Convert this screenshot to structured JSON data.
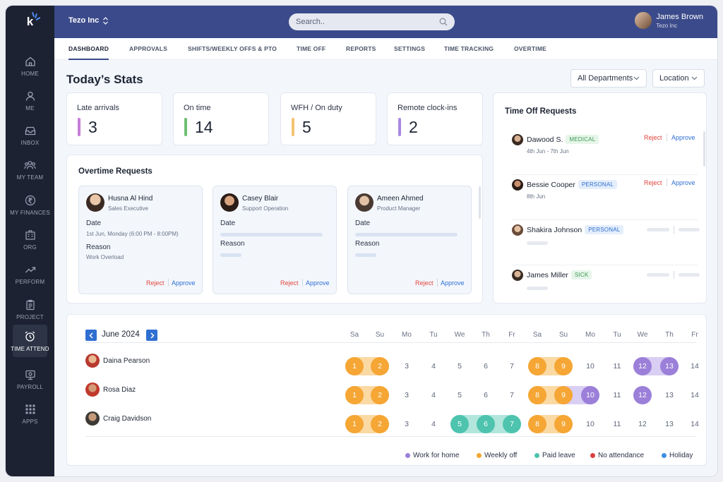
{
  "app": {
    "logo": "k",
    "org": "Tezo Inc",
    "search_placeholder": "Search..",
    "user_name": "James Brown",
    "user_org": "Tezo Inc"
  },
  "sidebar": {
    "items": [
      {
        "label": "HOME",
        "icon": "home-icon"
      },
      {
        "label": "ME",
        "icon": "user-icon"
      },
      {
        "label": "INBOX",
        "icon": "inbox-icon"
      },
      {
        "label": "MY TEAM",
        "icon": "team-icon"
      },
      {
        "label": "MY FINANCES",
        "icon": "rupee-icon"
      },
      {
        "label": "ORG",
        "icon": "org-icon"
      },
      {
        "label": "PERFORM",
        "icon": "trend-icon"
      },
      {
        "label": "PROJECT",
        "icon": "clipboard-icon"
      },
      {
        "label": "TIME ATTEND",
        "icon": "alarm-clock-icon"
      },
      {
        "label": "PAYROLL",
        "icon": "payroll-icon"
      },
      {
        "label": "APPS",
        "icon": "grid-icon"
      }
    ],
    "active": "TIME ATTEND"
  },
  "tabs": [
    "DASHBOARD",
    "APPROVALS",
    "SHIFTS/WEEKLY OFFS & PTO",
    "TIME OFF",
    "REPORTS",
    "SETTINGS",
    "TIME TRACKING",
    "OVERTIME"
  ],
  "page_title": "Today’s Stats",
  "filters": {
    "department": "All Departments",
    "location": "Location"
  },
  "stats": [
    {
      "label": "Late arrivals",
      "value": "3",
      "color": "#c77dd8"
    },
    {
      "label": "On time",
      "value": "14",
      "color": "#6fbf73"
    },
    {
      "label": "WFH / On duty",
      "value": "5",
      "color": "#f4c470"
    },
    {
      "label": "Remote clock-ins",
      "value": "2",
      "color": "#a889e0"
    }
  ],
  "overtime": {
    "title": "Overtime Requests",
    "requests": [
      {
        "name": "Husna Al Hind",
        "role": "Sales Executive",
        "date_label": "Date",
        "date": "1st Jun, Monday (6:00 PM - 8:00PM)",
        "reason_label": "Reason",
        "reason": "Work Overload",
        "reject": "Reject",
        "approve": "Approve"
      },
      {
        "name": "Casey Blair",
        "role": "Support Operation",
        "date_label": "Date",
        "reason_label": "Reason",
        "reject": "Reject",
        "approve": "Approve"
      },
      {
        "name": "Ameen Ahmed",
        "role": "Product Manager",
        "date_label": "Date",
        "reason_label": "Reason",
        "reject": "Reject",
        "approve": "Approve"
      }
    ]
  },
  "time_off": {
    "title": "Time Off Requests",
    "requests": [
      {
        "name": "Dawood S.",
        "tag": "MEDICAL",
        "dates": "4th Jun - 7th Jun",
        "reject": "Reject",
        "approve": "Approve"
      },
      {
        "name": "Bessie Cooper",
        "tag": "PERSONAL",
        "dates": "8th Jun",
        "reject": "Reject",
        "approve": "Approve"
      },
      {
        "name": "Shakira Johnson",
        "tag": "PERSONAL"
      },
      {
        "name": "James Miller",
        "tag": "SICK"
      }
    ]
  },
  "calendar": {
    "month": "June 2024",
    "weekdays": [
      "Sa",
      "Su",
      "Mo",
      "Tu",
      "We",
      "Th",
      "Fr",
      "Sa",
      "Su",
      "Mo",
      "Tu",
      "We",
      "Th",
      "Fr"
    ],
    "people": [
      {
        "name": "Daina Pearson",
        "days": [
          "1",
          "2",
          "3",
          "4",
          "5",
          "6",
          "7",
          "8",
          "9",
          "10",
          "11",
          "12",
          "13",
          "14"
        ]
      },
      {
        "name": "Rosa Diaz",
        "days": [
          "1",
          "2",
          "3",
          "4",
          "5",
          "6",
          "7",
          "8",
          "9",
          "10",
          "11",
          "12",
          "13",
          "14"
        ]
      },
      {
        "name": "Craig Davidson",
        "days": [
          "1",
          "2",
          "3",
          "4",
          "5",
          "6",
          "7",
          "8",
          "9",
          "10",
          "11",
          "12",
          "13",
          "14"
        ]
      }
    ],
    "legend": [
      {
        "label": "Work for home",
        "color": "#9b7fd8"
      },
      {
        "label": "Weekly off",
        "color": "#f5a634"
      },
      {
        "label": "Paid leave",
        "color": "#4ec3ae"
      },
      {
        "label": "No attendance",
        "color": "#d94040"
      },
      {
        "label": "Holiday",
        "color": "#3e90e0"
      }
    ]
  }
}
